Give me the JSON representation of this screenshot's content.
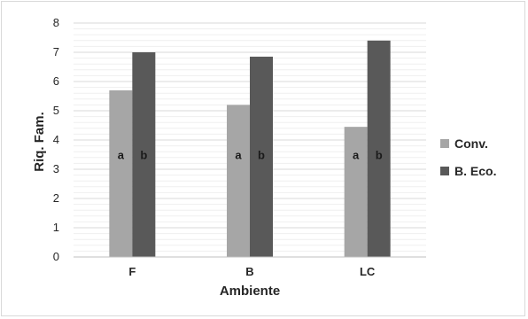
{
  "chart_data": {
    "type": "bar",
    "title": "",
    "xlabel": "Ambiente",
    "ylabel": "Riq. Fam.",
    "categories": [
      "F",
      "B",
      "LC"
    ],
    "series": [
      {
        "name": "Conv.",
        "values": [
          5.7,
          5.2,
          4.45
        ],
        "color": "#a6a6a6",
        "letters": [
          "a",
          "a",
          "a"
        ]
      },
      {
        "name": "B. Eco.",
        "values": [
          7.0,
          6.85,
          7.4
        ],
        "color": "#595959",
        "letters": [
          "b",
          "b",
          "b"
        ]
      }
    ],
    "ylim": [
      0,
      8
    ],
    "yticks": [
      0,
      1,
      2,
      3,
      4,
      5,
      6,
      7,
      8
    ],
    "letter_y": 3.5,
    "grid": true,
    "legend_position": "right"
  }
}
